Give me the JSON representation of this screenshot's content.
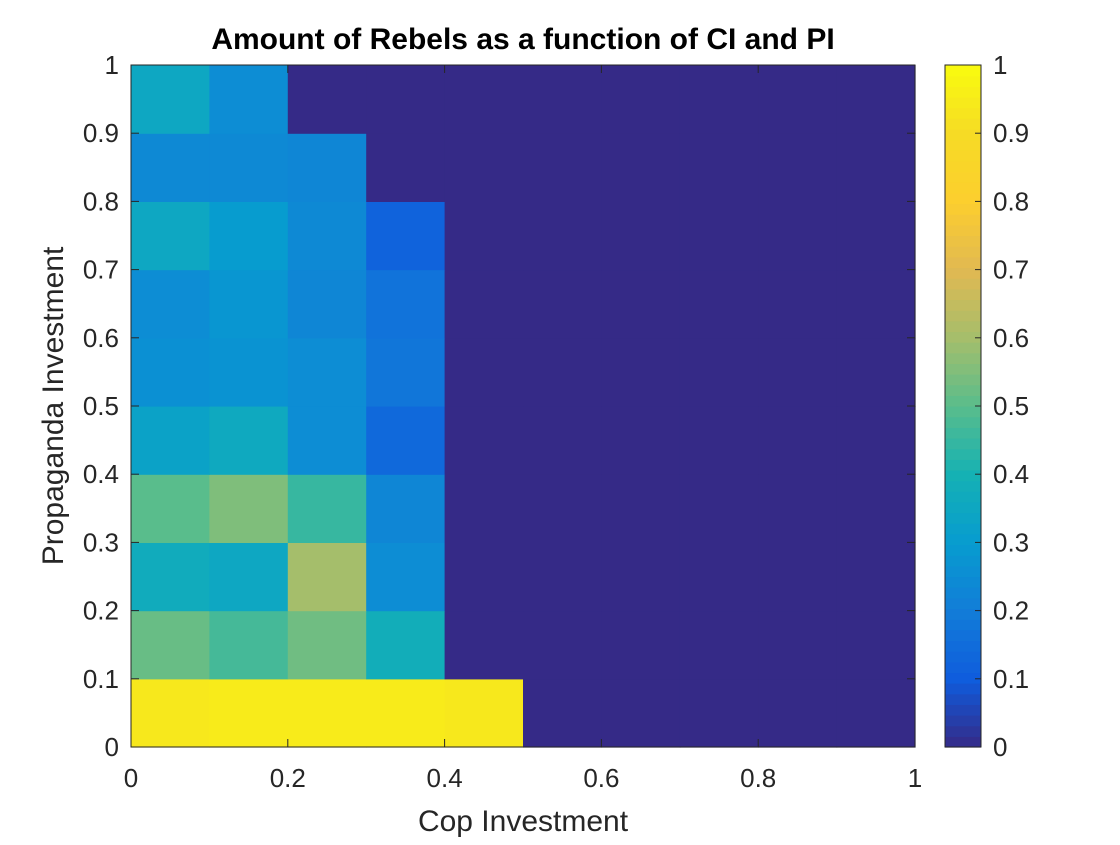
{
  "chart_data": {
    "type": "heatmap",
    "title": "Amount of Rebels as a function of CI and PI",
    "xlabel": "Cop Investment",
    "ylabel": "Propaganda Investment",
    "xlim": [
      0,
      1
    ],
    "ylim": [
      0,
      1
    ],
    "x_ticks": [
      "0",
      "0.2",
      "0.4",
      "0.6",
      "0.8",
      "1"
    ],
    "y_ticks": [
      "0",
      "0.1",
      "0.2",
      "0.3",
      "0.4",
      "0.5",
      "0.6",
      "0.7",
      "0.8",
      "0.9",
      "1"
    ],
    "x_cells": [
      0,
      0.1,
      0.2,
      0.3,
      0.4,
      0.5,
      0.6,
      0.7,
      0.8,
      0.9
    ],
    "y_cells": [
      0,
      0.1,
      0.2,
      0.3,
      0.4,
      0.5,
      0.6,
      0.7,
      0.8,
      0.9
    ],
    "z": [
      [
        0.94,
        0.95,
        0.95,
        0.95,
        0.94,
        0,
        0,
        0,
        0,
        0
      ],
      [
        0.52,
        0.47,
        0.53,
        0.38,
        0,
        0,
        0,
        0,
        0,
        0
      ],
      [
        0.37,
        0.35,
        0.6,
        0.25,
        0,
        0,
        0,
        0,
        0,
        0
      ],
      [
        0.5,
        0.55,
        0.45,
        0.23,
        0,
        0,
        0,
        0,
        0,
        0
      ],
      [
        0.33,
        0.36,
        0.25,
        0.14,
        0,
        0,
        0,
        0,
        0,
        0
      ],
      [
        0.26,
        0.27,
        0.25,
        0.18,
        0,
        0,
        0,
        0,
        0,
        0
      ],
      [
        0.25,
        0.28,
        0.23,
        0.17,
        0,
        0,
        0,
        0,
        0,
        0
      ],
      [
        0.35,
        0.3,
        0.24,
        0.12,
        0,
        0,
        0,
        0,
        0,
        0
      ],
      [
        0.24,
        0.24,
        0.23,
        0,
        0,
        0,
        0,
        0,
        0,
        0
      ],
      [
        0.35,
        0.25,
        0,
        0,
        0,
        0,
        0,
        0,
        0,
        0
      ]
    ],
    "colorbar": {
      "colormap": "parula",
      "range": [
        0,
        1
      ],
      "ticks": [
        "0",
        "0.1",
        "0.2",
        "0.3",
        "0.4",
        "0.5",
        "0.6",
        "0.7",
        "0.8",
        "0.9",
        "1"
      ]
    },
    "grid": false
  }
}
